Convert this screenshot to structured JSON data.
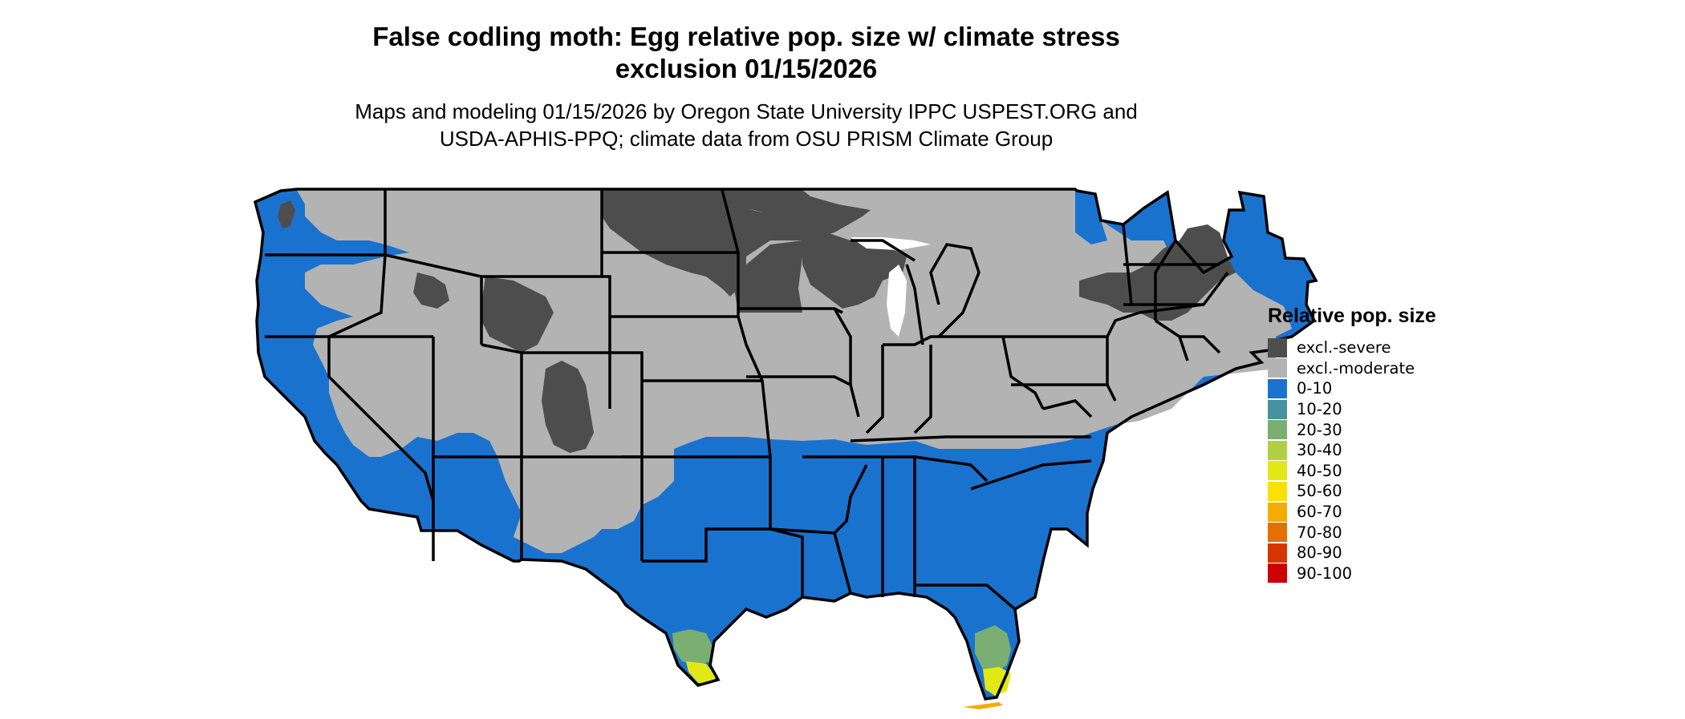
{
  "title_line1": "False codling moth: Egg relative pop. size w/ climate stress",
  "title_line2": "exclusion 01/15/2026",
  "subtitle_line1": "Maps and modeling 01/15/2026 by Oregon State University IPPC USPEST.ORG and",
  "subtitle_line2": "USDA-APHIS-PPQ; climate data from OSU PRISM Climate Group",
  "legend": {
    "title": "Relative pop. size",
    "items": [
      {
        "label": "excl.-severe",
        "color": "#4d4d4d"
      },
      {
        "label": "excl.-moderate",
        "color": "#b3b3b3"
      },
      {
        "label": "0-10",
        "color": "#1a72cf"
      },
      {
        "label": "10-20",
        "color": "#4592a0"
      },
      {
        "label": "20-30",
        "color": "#7bae72"
      },
      {
        "label": "30-40",
        "color": "#b2ce47"
      },
      {
        "label": "40-50",
        "color": "#e2e816"
      },
      {
        "label": "50-60",
        "color": "#fbe100"
      },
      {
        "label": "60-70",
        "color": "#f2ad00"
      },
      {
        "label": "70-80",
        "color": "#e47000"
      },
      {
        "label": "80-90",
        "color": "#d73500"
      },
      {
        "label": "90-100",
        "color": "#cc0000"
      }
    ]
  }
}
